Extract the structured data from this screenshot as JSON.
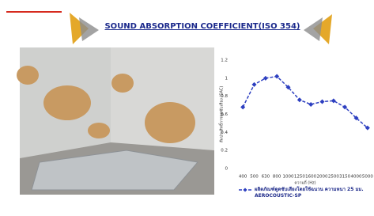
{
  "chart_data": {
    "type": "line",
    "title": "SOUND ABSORPTION COEFFICIENT(ISO 354)",
    "y_label": "สัมประสิทธิ์การดูดซับเสียง (SAC)",
    "x_label": "ความถี่ (Hz)",
    "categories": [
      "400",
      "500",
      "630",
      "800",
      "1000",
      "1250",
      "1600",
      "2000",
      "2500",
      "3150",
      "4000",
      "5000"
    ],
    "series": [
      {
        "name": "ผลิตภัณฑ์ดูดซับเสียงโดยใช้ฉนวน ความหนา 25 มม. AEROCOUSTIC-SP",
        "color": "#2d3fc0",
        "values": [
          0.68,
          0.93,
          1.0,
          1.02,
          0.9,
          0.76,
          0.71,
          0.74,
          0.75,
          0.68,
          0.56,
          0.45
        ]
      }
    ],
    "ylim": [
      0,
      1.2
    ],
    "yticks": [
      0,
      0.2,
      0.4,
      0.6,
      0.8,
      1,
      1.2
    ],
    "grid": false
  }
}
